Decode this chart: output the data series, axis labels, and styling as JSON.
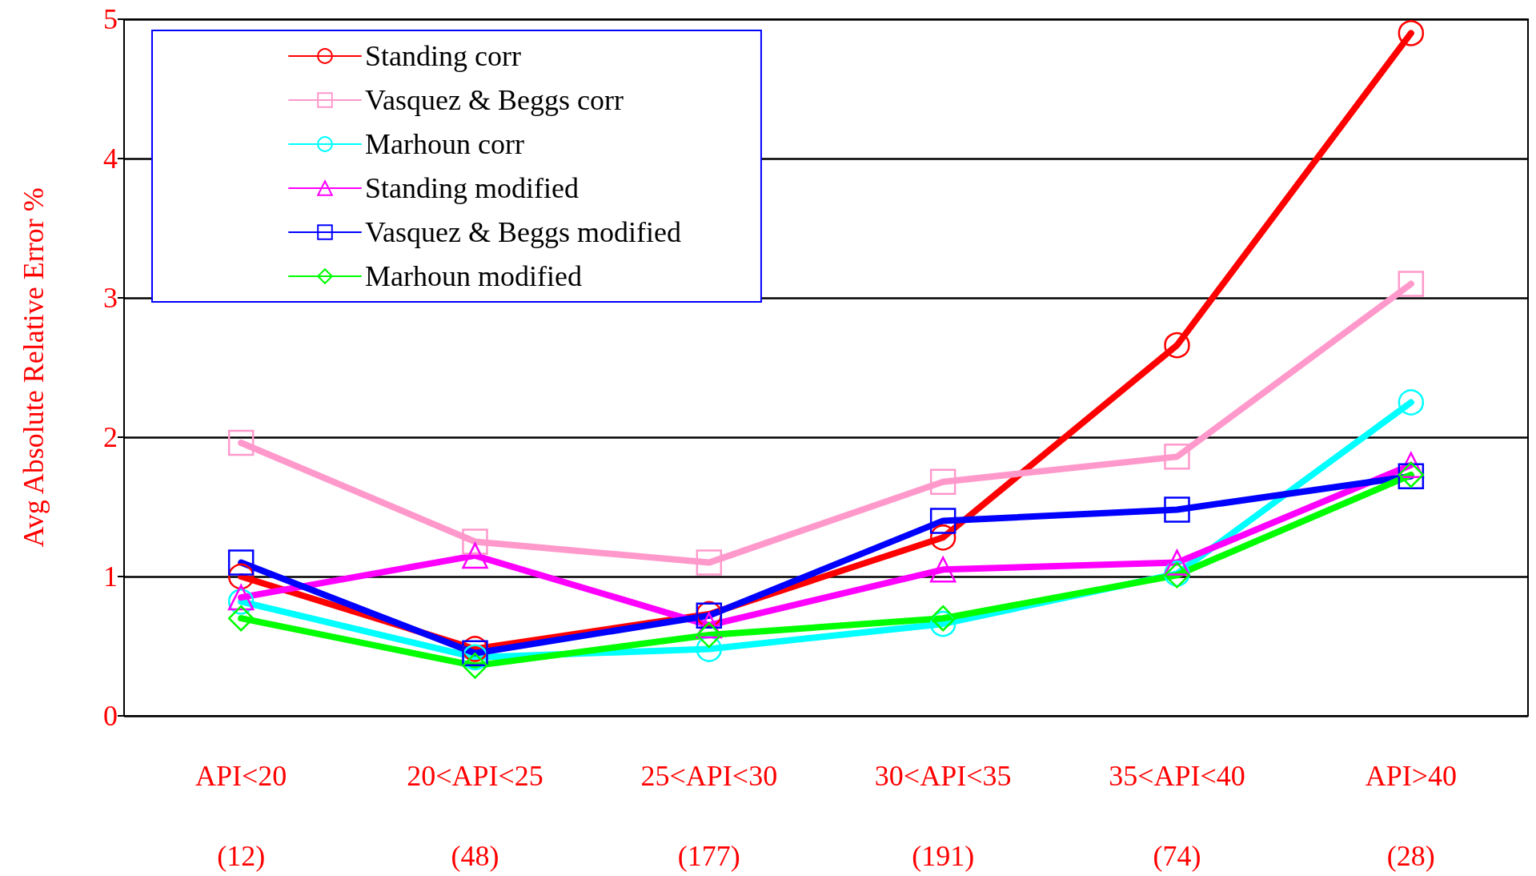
{
  "chart_data": {
    "type": "line",
    "ylabel": "Avg Absolute Relative Error %",
    "categories": [
      "API<20\n\n(12)",
      "20<API<25\n\n(48)",
      "25<API<30\n\n(177)",
      "30<API<35\n\n(191)",
      "35<API<40\n\n(74)",
      "API>40\n\n(28)"
    ],
    "series": [
      {
        "name": "Standing corr",
        "color": "#ff0000",
        "marker": "circle",
        "values": [
          1.0,
          0.48,
          0.73,
          1.28,
          2.66,
          4.9
        ]
      },
      {
        "name": "Vasquez & Beggs corr",
        "color": "#ff99cc",
        "marker": "square",
        "values": [
          1.96,
          1.25,
          1.1,
          1.68,
          1.86,
          3.1
        ]
      },
      {
        "name": "Marhoun corr",
        "color": "#00ffff",
        "marker": "circle",
        "values": [
          0.82,
          0.42,
          0.48,
          0.66,
          1.02,
          2.25
        ]
      },
      {
        "name": "Standing modified",
        "color": "#ff00ff",
        "marker": "triangle",
        "values": [
          0.85,
          1.15,
          0.65,
          1.05,
          1.1,
          1.8
        ]
      },
      {
        "name": "Vasquez & Beggs modified",
        "color": "#0000ff",
        "marker": "square",
        "values": [
          1.1,
          0.45,
          0.72,
          1.4,
          1.48,
          1.72
        ]
      },
      {
        "name": "Marhoun modified",
        "color": "#00ff00",
        "marker": "diamond",
        "values": [
          0.7,
          0.36,
          0.58,
          0.7,
          1.01,
          1.73
        ]
      }
    ],
    "ylim": [
      0,
      5
    ],
    "yticks": [
      0,
      1,
      2,
      3,
      4,
      5
    ],
    "grid": "y",
    "legend": "top left",
    "line_style": "solid"
  }
}
